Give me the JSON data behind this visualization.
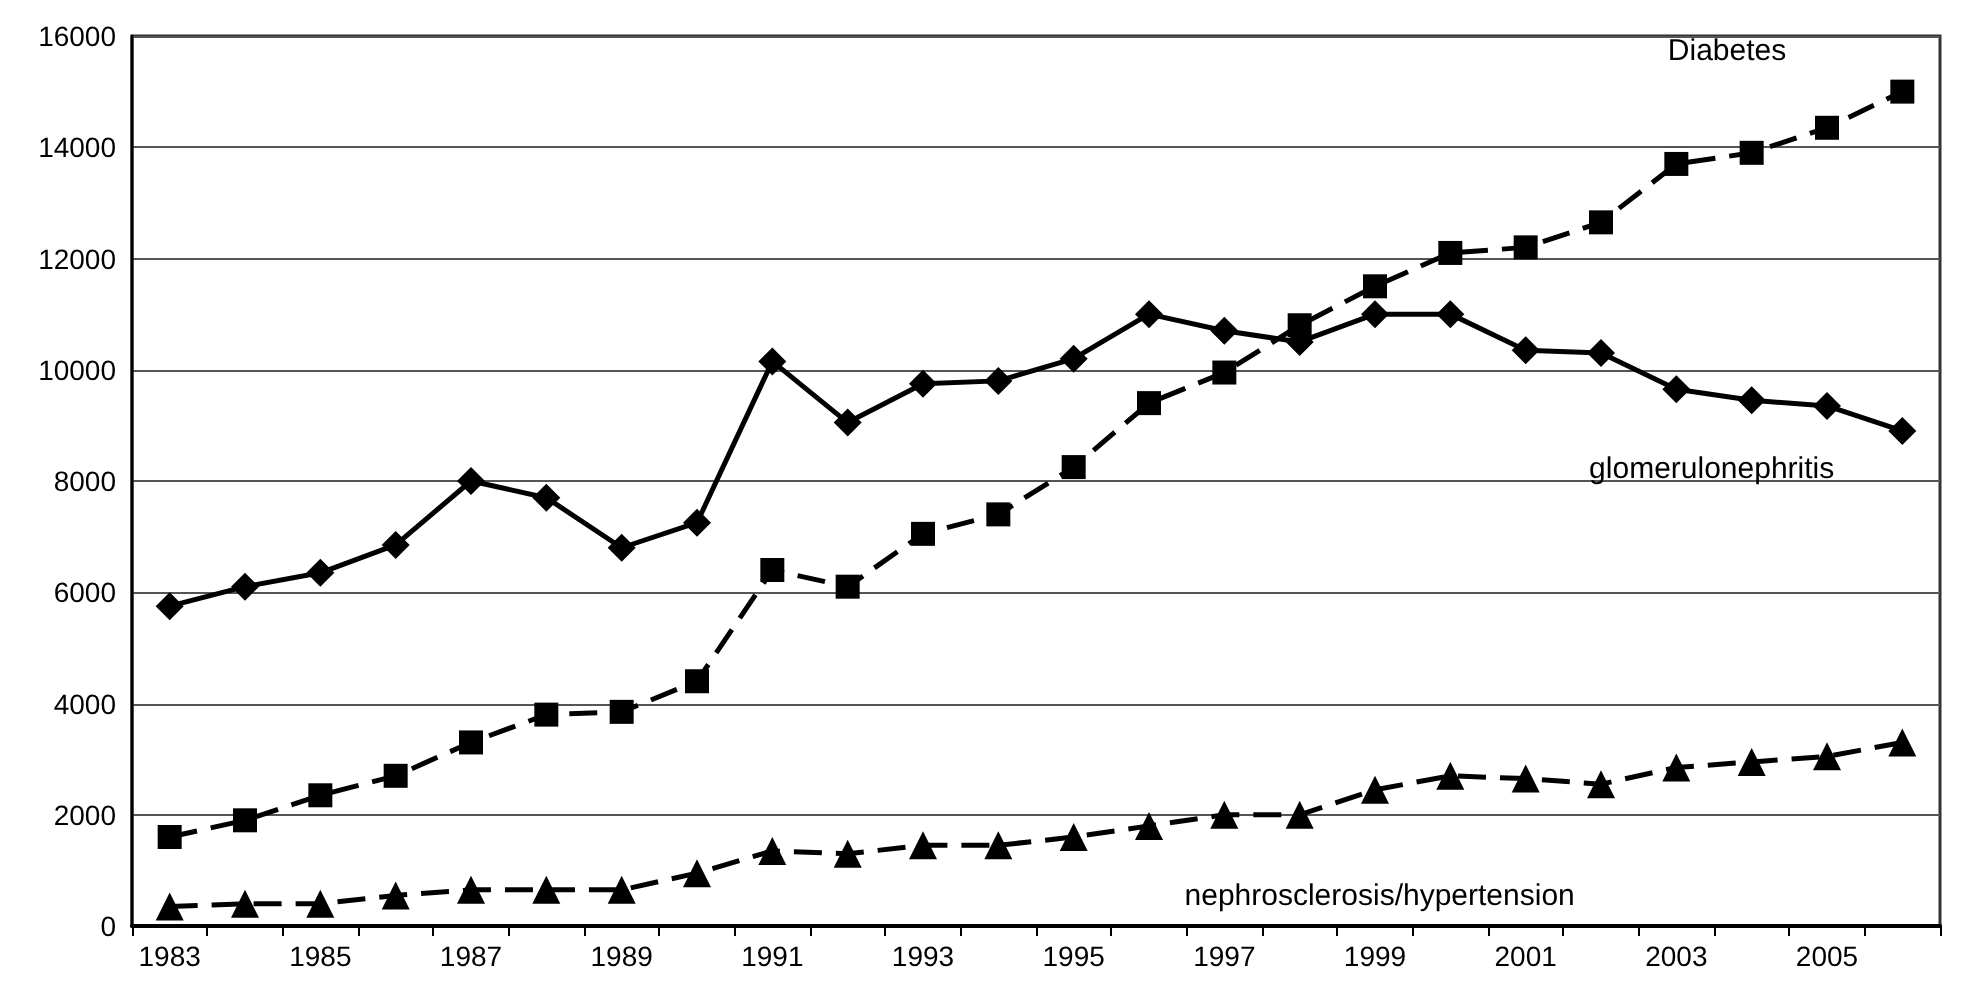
{
  "chart_data": {
    "type": "line",
    "categories": [
      "1983",
      null,
      "1985",
      null,
      "1987",
      null,
      "1989",
      null,
      "1991",
      null,
      "1993",
      null,
      "1995",
      null,
      "1997",
      null,
      "1999",
      null,
      "2001",
      null,
      "2003",
      null,
      "2005",
      null
    ],
    "series": [
      {
        "name": "glomerulonephritis",
        "color": "#000000",
        "marker": "diamond",
        "line_style": "solid",
        "values": [
          5750,
          6100,
          6350,
          6850,
          8000,
          7700,
          6800,
          7250,
          10150,
          9050,
          9750,
          9800,
          10200,
          11000,
          10700,
          10500,
          11000,
          11000,
          10350,
          10300,
          9650,
          9450,
          9350,
          8900
        ]
      },
      {
        "name": "Diabetes",
        "color": "#000000",
        "marker": "square",
        "line_style": "dashed",
        "values": [
          1600,
          1900,
          2350,
          2700,
          3300,
          3800,
          3850,
          4400,
          6400,
          6100,
          7050,
          7400,
          8250,
          9400,
          9950,
          10800,
          11500,
          12100,
          12200,
          12650,
          13700,
          13900,
          14350,
          15000
        ]
      },
      {
        "name": "nephrosclerosis/hypertension",
        "color": "#000000",
        "marker": "triangle",
        "line_style": "dashed",
        "values": [
          350,
          400,
          400,
          550,
          650,
          650,
          650,
          950,
          1350,
          1300,
          1450,
          1450,
          1600,
          1800,
          2000,
          2000,
          2450,
          2700,
          2650,
          2550,
          2850,
          2950,
          3050,
          3300
        ]
      }
    ],
    "ylim": [
      0,
      16000
    ],
    "yticks": [
      0,
      2000,
      4000,
      6000,
      8000,
      10000,
      12000,
      14000,
      16000
    ],
    "grid": "y",
    "legend": false
  }
}
